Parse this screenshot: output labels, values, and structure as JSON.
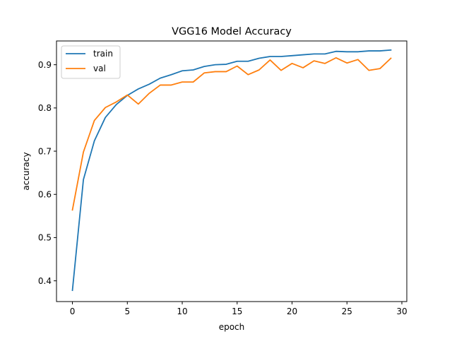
{
  "chart_data": {
    "type": "line",
    "title": "VGG16 Model Accuracy",
    "xlabel": "epoch",
    "ylabel": "accuracy",
    "xlim": [
      -1.45,
      30.45
    ],
    "ylim": [
      0.352,
      0.955
    ],
    "xticks": [
      0,
      5,
      10,
      15,
      20,
      25,
      30
    ],
    "yticks": [
      0.4,
      0.5,
      0.6,
      0.7,
      0.8,
      0.9
    ],
    "grid": false,
    "legend_position": "top-left",
    "x": [
      0,
      1,
      2,
      3,
      4,
      5,
      6,
      7,
      8,
      9,
      10,
      11,
      12,
      13,
      14,
      15,
      16,
      17,
      18,
      19,
      20,
      21,
      22,
      23,
      24,
      25,
      26,
      27,
      28,
      29
    ],
    "series": [
      {
        "name": "train",
        "color": "#1f77b4",
        "values": [
          0.378,
          0.634,
          0.724,
          0.778,
          0.808,
          0.829,
          0.844,
          0.855,
          0.869,
          0.877,
          0.886,
          0.888,
          0.896,
          0.9,
          0.901,
          0.908,
          0.908,
          0.915,
          0.919,
          0.919,
          0.921,
          0.923,
          0.925,
          0.925,
          0.931,
          0.93,
          0.93,
          0.932,
          0.932,
          0.934
        ]
      },
      {
        "name": "val",
        "color": "#ff7f0e",
        "values": [
          0.564,
          0.698,
          0.771,
          0.801,
          0.814,
          0.83,
          0.809,
          0.834,
          0.853,
          0.853,
          0.86,
          0.86,
          0.881,
          0.884,
          0.884,
          0.897,
          0.877,
          0.888,
          0.911,
          0.887,
          0.903,
          0.893,
          0.909,
          0.903,
          0.916,
          0.904,
          0.912,
          0.887,
          0.891,
          0.915
        ]
      }
    ]
  }
}
